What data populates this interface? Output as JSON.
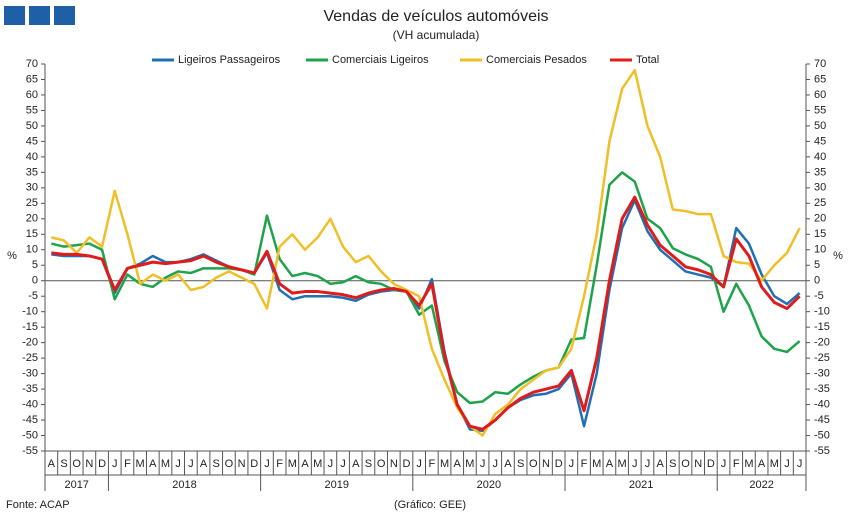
{
  "chart_data": {
    "type": "line",
    "title": "Vendas de veículos automóveis",
    "subtitle": "(VH acumulada)",
    "y_label": "%",
    "source": "Fonte: ACAP",
    "credit": "(Gráfico: GEE)",
    "legend": "top",
    "categories": [
      "A",
      "S",
      "O",
      "N",
      "D",
      "J",
      "F",
      "M",
      "A",
      "M",
      "J",
      "J",
      "A",
      "S",
      "O",
      "N",
      "D",
      "J",
      "F",
      "M",
      "A",
      "M",
      "J",
      "J",
      "A",
      "S",
      "O",
      "N",
      "D",
      "J",
      "F",
      "M",
      "A",
      "M",
      "J",
      "J",
      "A",
      "S",
      "O",
      "N",
      "D",
      "J",
      "F",
      "M",
      "A",
      "M",
      "J",
      "J",
      "A",
      "S",
      "O",
      "N",
      "D",
      "J",
      "F",
      "M",
      "A",
      "M",
      "J",
      "J"
    ],
    "years": [
      "2017",
      "2018",
      "2019",
      "2020",
      "2021",
      "2022"
    ],
    "ylim": [
      -55,
      70
    ],
    "yticks": [
      -55,
      -50,
      -45,
      -40,
      -35,
      -30,
      -25,
      -20,
      -15,
      -10,
      -5,
      0,
      5,
      10,
      15,
      20,
      25,
      30,
      35,
      40,
      45,
      50,
      55,
      60,
      65,
      70
    ],
    "y2lim": [
      -55,
      70
    ],
    "y2ticks": [
      -55,
      -50,
      -45,
      -40,
      -35,
      -30,
      -25,
      -20,
      -15,
      -10,
      -5,
      0,
      5,
      10,
      15,
      20,
      25,
      30,
      35,
      40,
      45,
      50,
      55,
      60,
      65,
      70
    ],
    "series": [
      {
        "name": "Ligeiros Passageiros",
        "color": "#1f6fb5",
        "values": [
          8.5,
          8,
          8,
          8,
          7,
          -4,
          4,
          5.5,
          8,
          6,
          6,
          7,
          8.5,
          6.5,
          4.5,
          3.5,
          2.5,
          9,
          -3,
          -6,
          -5,
          -5,
          -5,
          -5.5,
          -6.5,
          -4.5,
          -3.5,
          -3,
          -3.5,
          -9,
          0.5,
          -23,
          -40,
          -48,
          -48.5,
          -45,
          -41,
          -38.5,
          -37,
          -36.5,
          -35,
          -30,
          -47,
          -30,
          -3,
          17,
          26,
          16,
          10,
          6.5,
          3,
          2,
          1,
          -2,
          17,
          12,
          2,
          -5,
          -7.5,
          -4
        ]
      },
      {
        "name": "Comerciais Ligeiros",
        "color": "#1fa34a",
        "values": [
          12,
          11,
          11.5,
          12,
          10,
          -6,
          2,
          -1,
          -2,
          1,
          3,
          2.5,
          4,
          4,
          4,
          3.5,
          2,
          21,
          7,
          1.5,
          2.5,
          1.5,
          -1,
          -0.5,
          1.5,
          -0.5,
          -1,
          -3,
          -3.5,
          -11,
          -8,
          -26,
          -36,
          -39.5,
          -39,
          -36,
          -36.5,
          -33.5,
          -31,
          -29,
          -28,
          -19,
          -18.5,
          5,
          31,
          35,
          32,
          20,
          17,
          10.5,
          8.5,
          7,
          4.5,
          -10,
          -1,
          -8,
          -18,
          -22,
          -23,
          -19.5
        ]
      },
      {
        "name": "Comerciais Pesados",
        "color": "#f0bf28",
        "values": [
          14,
          13,
          9,
          14,
          11,
          29,
          15,
          -1,
          2,
          0,
          2,
          -3,
          -2,
          1,
          3,
          1,
          -1,
          -9,
          11,
          15,
          10,
          14,
          20,
          11,
          6,
          8,
          3,
          -1,
          -3,
          -5,
          -22,
          -32,
          -41,
          -47,
          -50,
          -43,
          -40,
          -35,
          -32,
          -29,
          -28,
          -22,
          -5,
          15,
          45,
          62,
          68,
          50,
          40,
          23,
          22.5,
          21.5,
          21.5,
          8,
          6,
          5.5,
          0,
          5,
          9,
          17
        ]
      },
      {
        "name": "Total",
        "color": "#e01b1b",
        "values": [
          9,
          8.5,
          8.5,
          8,
          7,
          -3,
          4,
          5,
          6,
          5.5,
          6,
          6.5,
          8,
          6,
          4.5,
          3.5,
          2.5,
          9.5,
          -1,
          -4,
          -3.5,
          -3.5,
          -4,
          -4.5,
          -5.5,
          -4,
          -3,
          -2.5,
          -3.5,
          -8,
          -1,
          -24,
          -40,
          -47,
          -48,
          -45,
          -41,
          -38,
          -36,
          -35,
          -34,
          -29,
          -42,
          -25,
          0,
          20,
          27,
          18,
          11.5,
          8,
          4.5,
          3.5,
          2,
          -2,
          13.5,
          8,
          -2,
          -7,
          -9,
          -5
        ]
      }
    ]
  }
}
